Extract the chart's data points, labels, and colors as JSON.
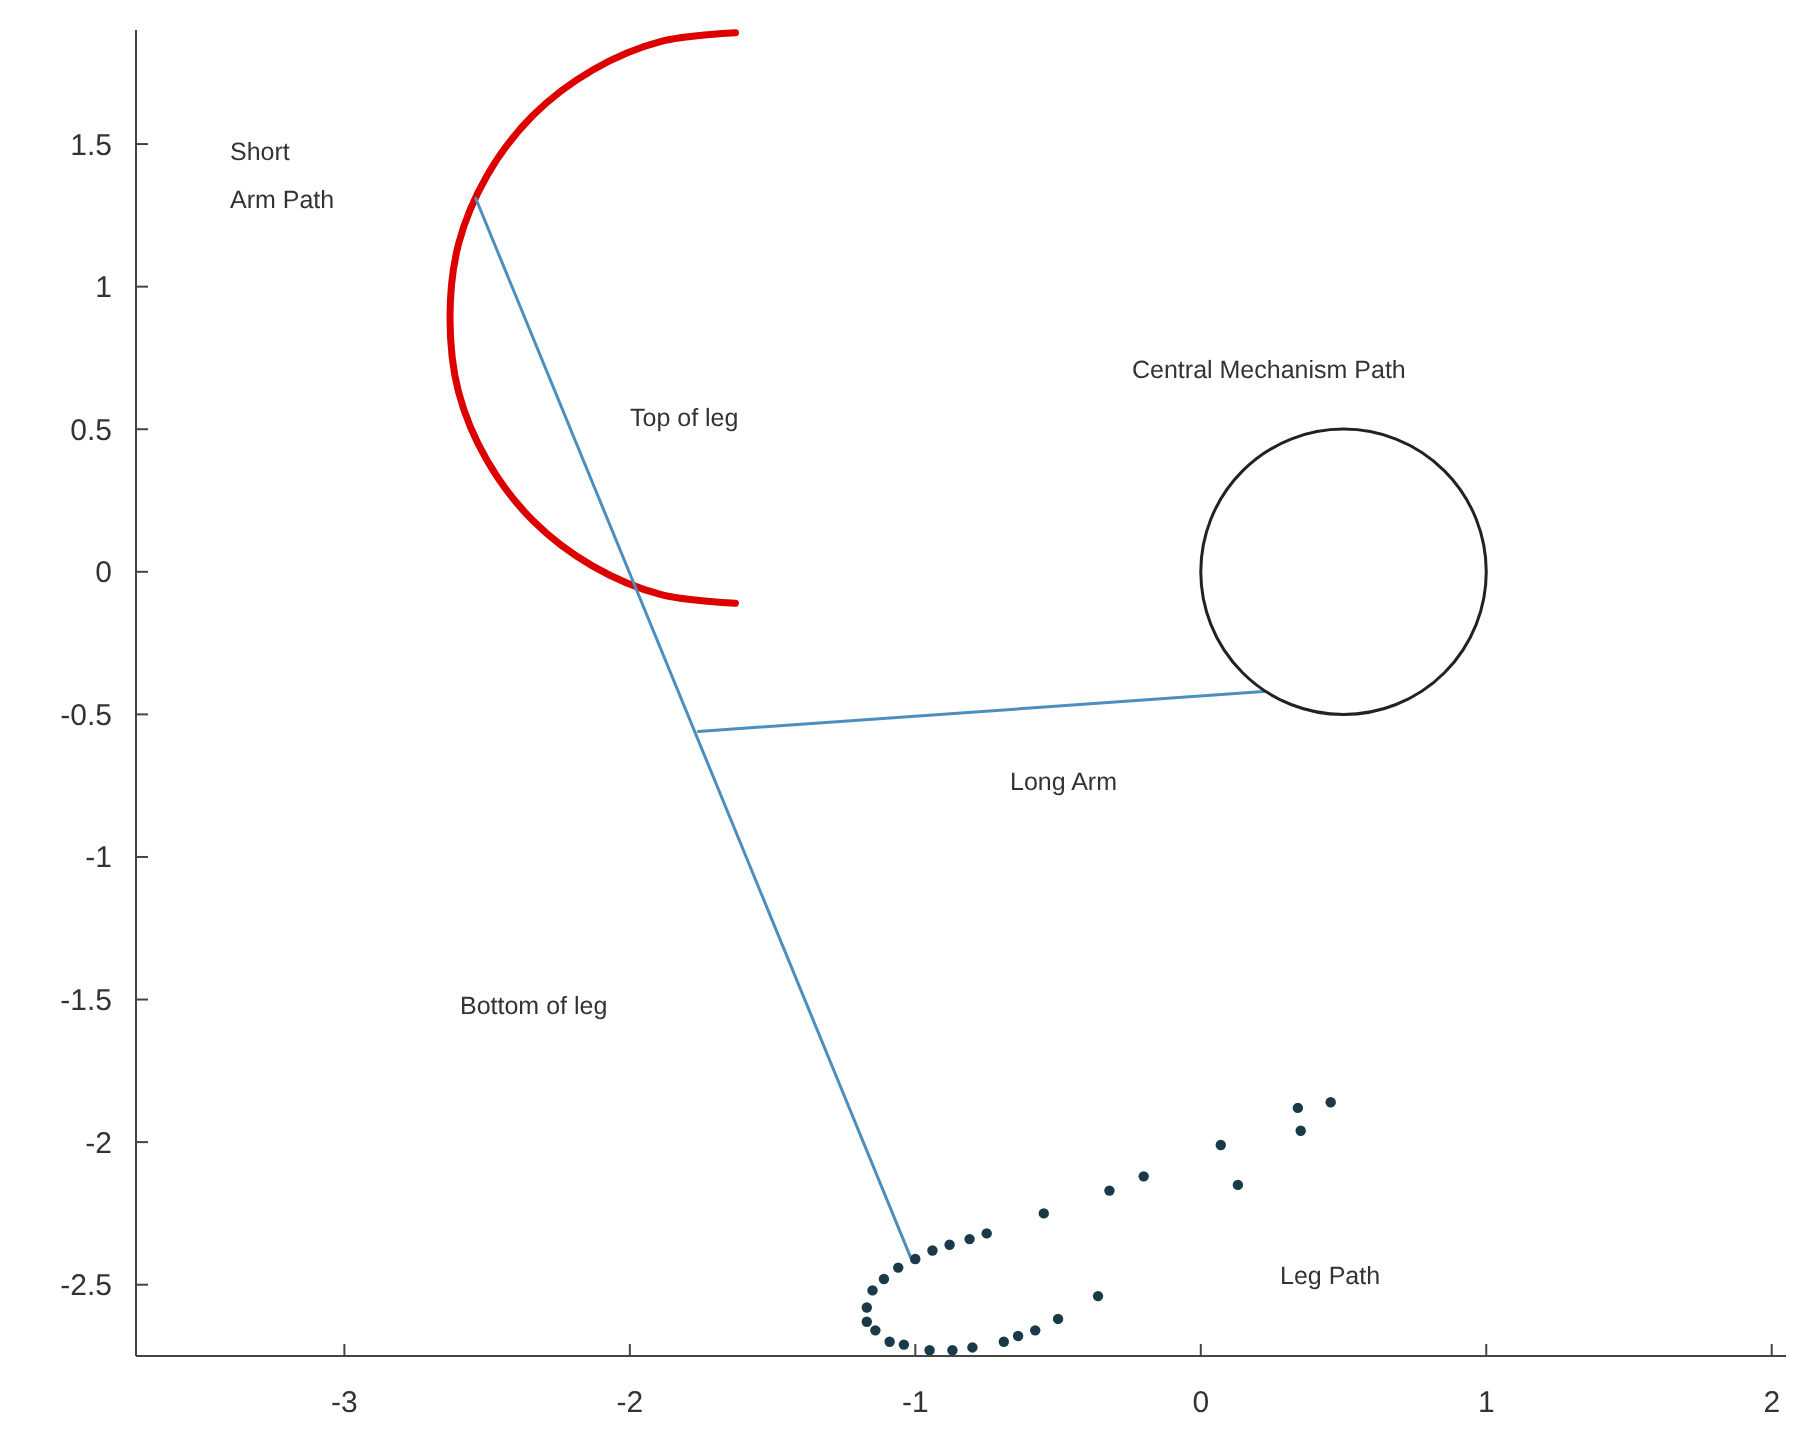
{
  "chart_data": {
    "type": "line",
    "xlim": [
      -3.73,
      2.05
    ],
    "ylim": [
      -2.75,
      1.9
    ],
    "xticks": [
      -3,
      -2,
      -1,
      0,
      1,
      2
    ],
    "yticks": [
      -2.5,
      -2,
      -1.5,
      -1,
      -0.5,
      0,
      0.5,
      1,
      1.5
    ],
    "grid": false,
    "series": [
      {
        "color": "#dd0000",
        "x": [
          -1.63,
          -1.89,
          -2.13,
          -2.34,
          -2.5,
          -2.6,
          -2.63,
          -2.6,
          -2.5,
          -2.34,
          -2.13,
          -1.89,
          -1.63
        ],
        "values": [
          1.89,
          1.86,
          1.76,
          1.6,
          1.39,
          1.15,
          0.89,
          0.63,
          0.39,
          0.18,
          0.02,
          -0.08,
          -0.11
        ]
      },
      {
        "color": "#4a8fbd",
        "x": [
          -2.54,
          -1.01
        ],
        "values": [
          1.31,
          -2.42
        ]
      },
      {
        "color": "#4a8fbd",
        "x": [
          -1.76,
          0.22
        ],
        "values": [
          -0.56,
          -0.42
        ]
      },
      {
        "type": "scatter",
        "marker": "circle",
        "color": "#1a3a4a",
        "x": [
          0.455,
          0.34,
          0.35,
          0.07,
          0.13,
          -0.2,
          -0.32,
          -0.55,
          -0.75,
          -0.81,
          -0.88,
          -0.94,
          -1,
          -1.06,
          -1.11,
          -1.15,
          -1.17,
          -1.17,
          -1.14,
          -1.09,
          -1.04,
          -0.95,
          -0.87,
          -0.8,
          -0.69,
          -0.64,
          -0.58,
          -0.5,
          -0.36
        ],
        "values": [
          -1.86,
          -1.88,
          -1.96,
          -2.01,
          -2.15,
          -2.12,
          -2.17,
          -2.25,
          -2.32,
          -2.34,
          -2.36,
          -2.38,
          -2.41,
          -2.44,
          -2.48,
          -2.52,
          -2.58,
          -2.63,
          -2.66,
          -2.7,
          -2.71,
          -2.73,
          -2.73,
          -2.72,
          -2.7,
          -2.68,
          -2.66,
          -2.62,
          -2.54
        ]
      }
    ],
    "annotations": [
      "Short\nArm Path",
      "Top of leg",
      "Central Mechanism Path",
      "Long Arm",
      "Bottom of leg",
      "Leg Path"
    ]
  }
}
